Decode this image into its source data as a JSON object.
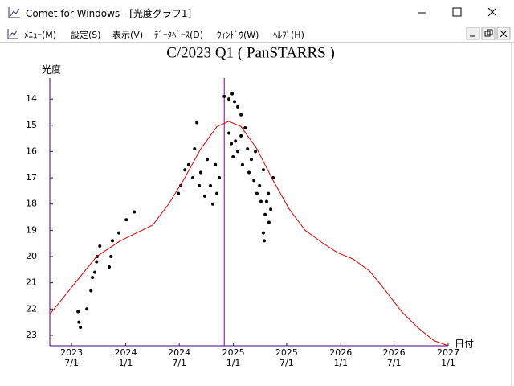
{
  "window": {
    "title": "Comet for Windows - [光度グラフ1]"
  },
  "menu": {
    "items": [
      "ﾒﾆｭｰ(M)",
      "設定(S)",
      "表示(V)",
      "ﾃﾞｰﾀﾍﾞｰｽ(D)",
      "ｳｨﾝﾄﾞｳ(W)",
      "ﾍﾙﾌﾟ(H)"
    ]
  },
  "chart_data": {
    "type": "scatter",
    "title": "C/2023 Q1 ( PanSTARRS )",
    "y_label": "光度",
    "x_label": "日付",
    "xlim": [
      "2023-04-18",
      "2027-01-01"
    ],
    "ylim": [
      23.4,
      13.2
    ],
    "xticks": [
      {
        "value": "2023-07-01",
        "label": [
          "2023",
          "7/1"
        ]
      },
      {
        "value": "2024-01-01",
        "label": [
          "2024",
          "1/1"
        ]
      },
      {
        "value": "2024-07-01",
        "label": [
          "2024",
          "7/1"
        ]
      },
      {
        "value": "2025-01-01",
        "label": [
          "2025",
          "1/1"
        ]
      },
      {
        "value": "2025-07-01",
        "label": [
          "2025",
          "7/1"
        ]
      },
      {
        "value": "2026-01-01",
        "label": [
          "2026",
          "1/1"
        ]
      },
      {
        "value": "2026-07-01",
        "label": [
          "2026",
          "7/1"
        ]
      },
      {
        "value": "2027-01-01",
        "label": [
          "2027",
          "1/1"
        ]
      }
    ],
    "yticks": [
      14,
      15,
      16,
      17,
      18,
      19,
      20,
      21,
      22,
      23
    ],
    "vline": {
      "x": "2024-12-01",
      "color": "#8000a0"
    },
    "axis_color": "#400080",
    "series": [
      {
        "mode": "markers",
        "color": "#000000",
        "x": [
          "2023-07-23",
          "2023-07-26",
          "2023-07-31",
          "2023-08-22",
          "2023-09-05",
          "2023-09-10",
          "2023-09-18",
          "2023-09-24",
          "2023-09-26",
          "2023-10-05",
          "2023-11-06",
          "2023-11-12",
          "2023-11-17",
          "2023-12-09",
          "2024-01-03",
          "2024-01-30",
          "2024-06-28",
          "2024-07-06",
          "2024-07-20",
          "2024-08-02",
          "2024-08-16",
          "2024-08-22",
          "2024-08-30",
          "2024-09-07",
          "2024-09-12",
          "2024-09-26",
          "2024-10-04",
          "2024-10-15",
          "2024-10-23",
          "2024-11-01",
          "2024-11-06",
          "2024-11-14",
          "2024-12-01",
          "2024-12-17",
          "2024-12-28",
          "2025-01-05",
          "2025-01-16",
          "2025-01-27",
          "2024-12-17",
          "2024-12-25",
          "2024-12-31",
          "2025-01-08",
          "2025-01-16",
          "2025-01-27",
          "2025-02-01",
          "2025-02-10",
          "2025-02-18",
          "2025-02-23",
          "2025-03-03",
          "2025-03-12",
          "2025-03-17",
          "2025-03-22",
          "2025-03-31",
          "2025-04-05",
          "2025-04-13",
          "2025-04-19",
          "2025-04-24",
          "2025-04-30",
          "2025-05-02",
          "2025-04-16",
          "2025-04-13",
          "2025-05-08",
          "2025-05-16"
        ],
        "values": [
          22.1,
          22.5,
          22.7,
          22.0,
          21.3,
          20.8,
          20.6,
          20.2,
          20.0,
          19.6,
          20.4,
          20.0,
          19.4,
          19.1,
          18.6,
          18.3,
          17.6,
          17.3,
          16.7,
          16.5,
          17.0,
          15.9,
          14.9,
          17.3,
          16.8,
          17.7,
          16.3,
          17.3,
          18.0,
          16.5,
          17.6,
          17.0,
          13.9,
          14.0,
          13.8,
          14.1,
          14.3,
          14.6,
          15.3,
          15.7,
          16.2,
          15.6,
          16.0,
          15.4,
          16.5,
          15.1,
          15.9,
          16.8,
          16.3,
          17.1,
          16.0,
          17.6,
          17.3,
          17.9,
          16.7,
          18.4,
          17.9,
          17.6,
          18.7,
          19.4,
          19.1,
          18.2,
          17.0
        ]
      },
      {
        "mode": "line",
        "color": "#e00000",
        "x": [
          "2023-04-18",
          "2023-09-24",
          "2023-12-14",
          "2024-02-07",
          "2024-04-02",
          "2024-05-26",
          "2024-07-20",
          "2024-09-12",
          "2024-11-06",
          "2024-12-17",
          "2025-01-27",
          "2025-03-22",
          "2025-05-16",
          "2025-07-10",
          "2025-09-02",
          "2025-10-27",
          "2025-12-20",
          "2026-02-13",
          "2026-04-09",
          "2026-06-02",
          "2026-07-27",
          "2026-09-19",
          "2026-11-13",
          "2027-01-01"
        ],
        "values": [
          22.2,
          20.0,
          19.4,
          19.1,
          18.8,
          18.0,
          17.0,
          15.9,
          15.05,
          14.85,
          15.05,
          15.9,
          17.1,
          18.2,
          19.0,
          19.45,
          19.85,
          20.1,
          20.55,
          21.3,
          22.1,
          22.7,
          23.2,
          23.4
        ]
      }
    ]
  }
}
